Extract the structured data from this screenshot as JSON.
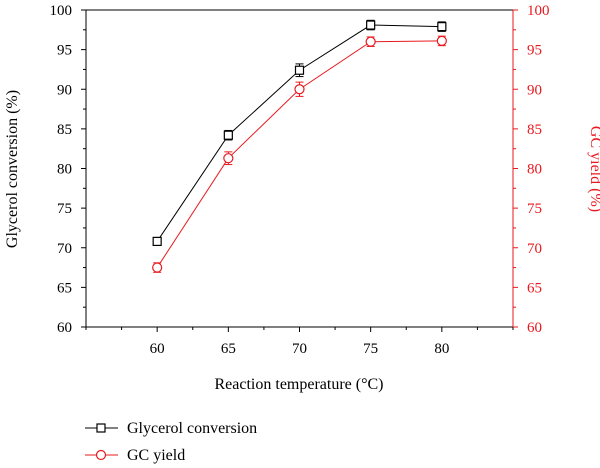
{
  "chart_data": {
    "type": "line",
    "x": [
      60,
      65,
      70,
      75,
      80
    ],
    "xlabel": "Reaction temperature (°C)",
    "xlim": [
      55,
      85
    ],
    "xticks": [
      60,
      65,
      70,
      75,
      80
    ],
    "y_left": {
      "label": "Glycerol conversion (%)",
      "lim": [
        60,
        100
      ],
      "ticks": [
        60,
        65,
        70,
        75,
        80,
        85,
        90,
        95,
        100
      ],
      "color": "#000000"
    },
    "y_right": {
      "label": "GC yield (%)",
      "lim": [
        60,
        100
      ],
      "ticks": [
        60,
        65,
        70,
        75,
        80,
        85,
        90,
        95,
        100
      ],
      "color": "#e8191e"
    },
    "series": [
      {
        "name": "Glycerol conversion",
        "axis": "left",
        "marker": "square",
        "color": "#000000",
        "values": [
          70.8,
          84.2,
          92.4,
          98.1,
          97.9
        ],
        "errors": [
          0.5,
          0.6,
          0.8,
          0.6,
          0.6
        ]
      },
      {
        "name": "GC yield",
        "axis": "right",
        "marker": "circle",
        "color": "#e8191e",
        "values": [
          67.5,
          81.3,
          90.0,
          96.0,
          96.1
        ],
        "errors": [
          0.6,
          0.8,
          0.9,
          0.6,
          0.6
        ]
      }
    ],
    "grid": false,
    "legend_position": "bottom-left"
  }
}
